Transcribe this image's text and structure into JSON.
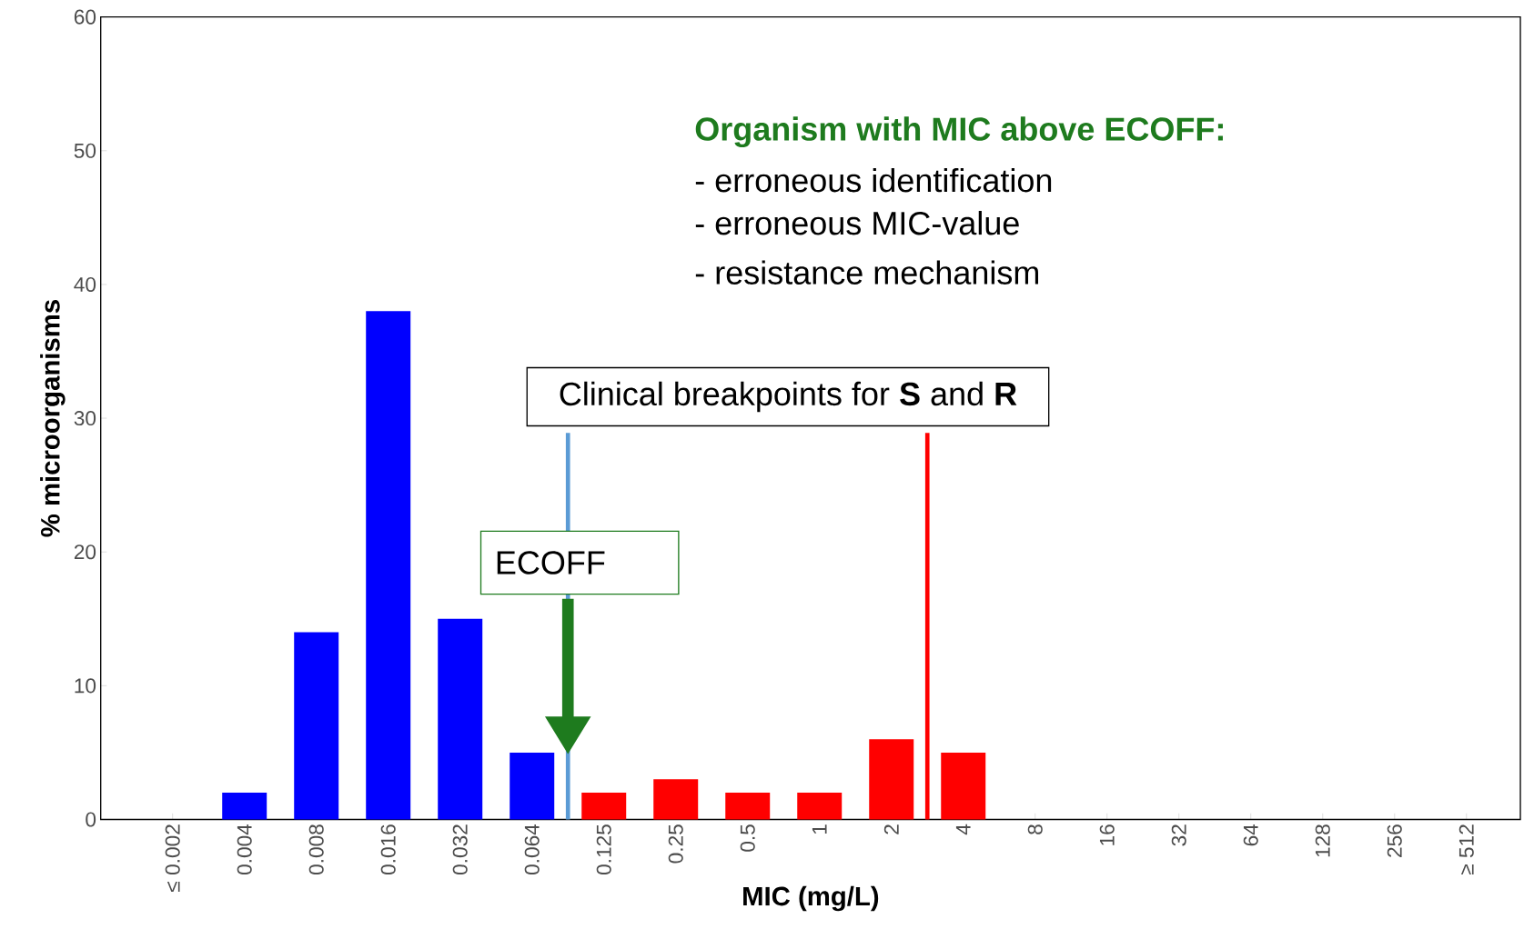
{
  "chart_data": {
    "type": "bar",
    "categories": [
      "≤ 0.002",
      "0.004",
      "0.008",
      "0.016",
      "0.032",
      "0.064",
      "0.125",
      "0.25",
      "0.5",
      "1",
      "2",
      "4",
      "8",
      "16",
      "32",
      "64",
      "128",
      "256",
      "≥ 512"
    ],
    "values": [
      0,
      2,
      14,
      38,
      15,
      5,
      2,
      3,
      2,
      2,
      6,
      5,
      0,
      0,
      0,
      0,
      0,
      0,
      0
    ],
    "colors": [
      "#0000ff",
      "#0000ff",
      "#0000ff",
      "#0000ff",
      "#0000ff",
      "#0000ff",
      "#ff0000",
      "#ff0000",
      "#ff0000",
      "#ff0000",
      "#ff0000",
      "#ff0000",
      "#ff0000",
      "#ff0000",
      "#ff0000",
      "#ff0000",
      "#ff0000",
      "#ff0000",
      "#ff0000"
    ],
    "ylim": [
      0,
      60
    ],
    "yticks": [
      0,
      10,
      20,
      30,
      40,
      50,
      60
    ],
    "xlabel": "MIC (mg/L)",
    "ylabel": "% microorganisms",
    "annotations": [
      "Organism with MIC above ECOFF:",
      "- erroneous identification",
      "- erroneous MIC-value",
      "- resistance mechanism",
      "Clinical breakpoints for **S** and **R**",
      "ECOFF"
    ],
    "ref_lines": [
      {
        "axis": "x",
        "value": "0.064",
        "color": "#5b9bd5"
      },
      {
        "axis": "x",
        "value": "2",
        "color": "#ff0000"
      }
    ]
  }
}
